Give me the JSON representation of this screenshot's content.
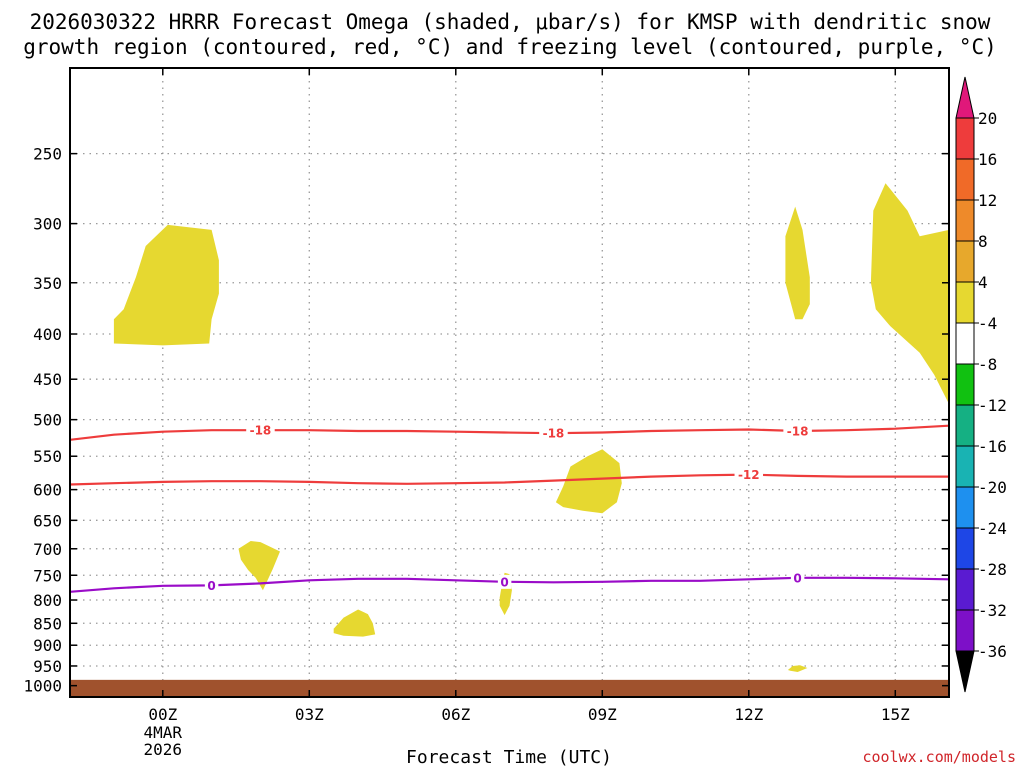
{
  "title_line1": "2026030322 HRRR Forecast Omega (shaded, μbar/s) for KMSP with dendritic snow",
  "title_line2": "growth region (contoured, red, °C) and freezing level (contoured, purple, °C)",
  "credit": "coolwx.com/models",
  "chart_data": {
    "type": "time-height cross-section",
    "title": "2026030322 HRRR Forecast Omega (shaded, μbar/s) for KMSP with dendritic snow growth region (contoured, red, °C) and freezing level (contoured, purple, °C)",
    "xlabel": "Forecast Time (UTC)",
    "ylabel": "",
    "x_units": "hours from 2026-03-04 00Z",
    "xlim": [
      -1.9,
      16.1
    ],
    "x_ticks": [
      {
        "x": 0,
        "label": "00Z",
        "sublabels": [
          "4MAR",
          "2026"
        ]
      },
      {
        "x": 3,
        "label": "03Z",
        "sublabels": []
      },
      {
        "x": 6,
        "label": "06Z",
        "sublabels": []
      },
      {
        "x": 9,
        "label": "09Z",
        "sublabels": []
      },
      {
        "x": 12,
        "label": "12Z",
        "sublabels": []
      },
      {
        "x": 15,
        "label": "15Z",
        "sublabels": []
      }
    ],
    "y_units": "hPa",
    "y_scale": "log-pressure (decreasing upward)",
    "ylim": [
      1030,
      200
    ],
    "y_ticks": [
      250,
      300,
      350,
      400,
      450,
      500,
      550,
      600,
      650,
      700,
      750,
      800,
      850,
      900,
      950,
      1000
    ],
    "grid": true,
    "ground_shading": {
      "color": "#a0522d",
      "from_pressure": 985,
      "to_pressure": 1030
    },
    "colorbar": {
      "placement": "right",
      "labels": [
        "20",
        "16",
        "12",
        "8",
        "4",
        "-4",
        "-8",
        "-12",
        "-16",
        "-20",
        "-24",
        "-28",
        "-32",
        "-36"
      ],
      "colors": [
        "#e0187a",
        "#ee3c3c",
        "#f06a28",
        "#ee8a2a",
        "#e7a82c",
        "#e6d830",
        "#ffffff",
        "#11c111",
        "#15b083",
        "#19b3b3",
        "#1e90ef",
        "#1e46e6",
        "#5a1bd1",
        "#7d10c8",
        "#9c0ec0",
        "#a0a0a0",
        "#000000"
      ]
    },
    "omega_areas": [
      {
        "fill": "#e6d830",
        "points": [
          [
            -1.0,
            410
          ],
          [
            -1.0,
            385
          ],
          [
            -0.8,
            375
          ],
          [
            -0.55,
            345
          ],
          [
            -0.35,
            318
          ],
          [
            0.1,
            301
          ],
          [
            1.0,
            305
          ],
          [
            1.15,
            330
          ],
          [
            1.15,
            360
          ],
          [
            1.0,
            385
          ],
          [
            0.95,
            410
          ],
          [
            0.0,
            412
          ]
        ]
      },
      {
        "fill": "#e6d830",
        "points": [
          [
            1.55,
            700
          ],
          [
            1.8,
            686
          ],
          [
            2.0,
            688
          ],
          [
            2.4,
            705
          ],
          [
            2.25,
            738
          ],
          [
            2.05,
            780
          ],
          [
            1.9,
            755
          ],
          [
            1.75,
            740
          ],
          [
            1.6,
            720
          ]
        ]
      },
      {
        "fill": "#e6d830",
        "points": [
          [
            3.5,
            862
          ],
          [
            3.7,
            838
          ],
          [
            4.0,
            820
          ],
          [
            4.2,
            830
          ],
          [
            4.3,
            850
          ],
          [
            4.35,
            875
          ],
          [
            4.1,
            880
          ],
          [
            3.7,
            878
          ],
          [
            3.5,
            872
          ]
        ]
      },
      {
        "fill": "#e6d830",
        "points": [
          [
            6.9,
            795
          ],
          [
            6.95,
            765
          ],
          [
            7.0,
            745
          ],
          [
            7.1,
            748
          ],
          [
            7.15,
            780
          ],
          [
            7.1,
            812
          ],
          [
            7.0,
            832
          ],
          [
            6.9,
            812
          ]
        ]
      },
      {
        "fill": "#e6d830",
        "points": [
          [
            8.05,
            620
          ],
          [
            8.2,
            595
          ],
          [
            8.35,
            565
          ],
          [
            8.7,
            550
          ],
          [
            9.0,
            540
          ],
          [
            9.35,
            560
          ],
          [
            9.4,
            590
          ],
          [
            9.3,
            620
          ],
          [
            9.0,
            638
          ],
          [
            8.6,
            634
          ],
          [
            8.2,
            628
          ]
        ]
      },
      {
        "fill": "#e6d830",
        "points": [
          [
            12.75,
            310
          ],
          [
            12.95,
            287
          ],
          [
            13.1,
            305
          ],
          [
            13.25,
            345
          ],
          [
            13.25,
            370
          ],
          [
            13.1,
            385
          ],
          [
            12.95,
            385
          ],
          [
            12.75,
            350
          ]
        ]
      },
      {
        "fill": "#e6d830",
        "points": [
          [
            12.8,
            960
          ],
          [
            12.9,
            950
          ],
          [
            13.05,
            948
          ],
          [
            13.2,
            955
          ],
          [
            13.0,
            965
          ],
          [
            12.85,
            962
          ]
        ]
      },
      {
        "fill": "#e6d830",
        "points": [
          [
            14.5,
            350
          ],
          [
            14.55,
            290
          ],
          [
            14.8,
            270
          ],
          [
            15.25,
            290
          ],
          [
            15.5,
            310
          ],
          [
            16.1,
            305
          ],
          [
            16.1,
            480
          ],
          [
            15.8,
            445
          ],
          [
            15.5,
            420
          ],
          [
            14.9,
            392
          ],
          [
            14.6,
            375
          ]
        ]
      }
    ],
    "contour_series": [
      {
        "color": "#ee3c3c",
        "label": "-18",
        "points": [
          [
            -1.9,
            527
          ],
          [
            -1.0,
            520
          ],
          [
            0.0,
            516
          ],
          [
            1.0,
            514
          ],
          [
            2.0,
            514
          ],
          [
            3.0,
            514
          ],
          [
            4.0,
            515
          ],
          [
            5.0,
            515
          ],
          [
            6.0,
            516
          ],
          [
            7.0,
            517
          ],
          [
            8.0,
            518
          ],
          [
            9.0,
            517
          ],
          [
            10.0,
            515
          ],
          [
            11.0,
            514
          ],
          [
            12.0,
            513
          ],
          [
            13.0,
            515
          ],
          [
            14.0,
            514
          ],
          [
            15.0,
            512
          ],
          [
            16.1,
            508
          ]
        ],
        "label_x": [
          2.0,
          8.0,
          13.0
        ]
      },
      {
        "color": "#ee3c3c",
        "label": "-12",
        "points": [
          [
            -1.9,
            592
          ],
          [
            -1.0,
            590
          ],
          [
            0.0,
            588
          ],
          [
            1.0,
            587
          ],
          [
            2.0,
            587
          ],
          [
            3.0,
            588
          ],
          [
            4.0,
            590
          ],
          [
            5.0,
            591
          ],
          [
            6.0,
            590
          ],
          [
            7.0,
            589
          ],
          [
            8.0,
            586
          ],
          [
            9.0,
            583
          ],
          [
            10.0,
            580
          ],
          [
            11.0,
            578
          ],
          [
            12.0,
            577
          ],
          [
            13.0,
            579
          ],
          [
            14.0,
            580
          ],
          [
            15.0,
            580
          ],
          [
            16.1,
            580
          ]
        ],
        "label_x": [
          12.0
        ]
      },
      {
        "color": "#9a0cc8",
        "label": "0",
        "points": [
          [
            -1.9,
            783
          ],
          [
            -1.0,
            776
          ],
          [
            0.0,
            771
          ],
          [
            1.0,
            770
          ],
          [
            2.0,
            766
          ],
          [
            3.0,
            760
          ],
          [
            4.0,
            757
          ],
          [
            5.0,
            757
          ],
          [
            6.0,
            760
          ],
          [
            7.0,
            763
          ],
          [
            8.0,
            764
          ],
          [
            9.0,
            763
          ],
          [
            10.0,
            761
          ],
          [
            11.0,
            761
          ],
          [
            12.0,
            758
          ],
          [
            13.0,
            755
          ],
          [
            14.0,
            755
          ],
          [
            15.0,
            756
          ],
          [
            16.1,
            758
          ]
        ],
        "label_x": [
          1.0,
          7.0,
          13.0
        ]
      }
    ]
  }
}
